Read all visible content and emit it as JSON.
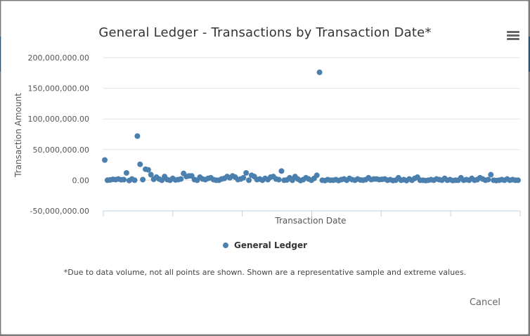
{
  "modal": {
    "cancel_label": "Cancel"
  },
  "chart_data": {
    "type": "scatter",
    "title": "General Ledger - Transactions by Transaction Date*",
    "xlabel": "Transaction Date",
    "ylabel": "Transaction Amount",
    "ylim": [
      -50000000,
      200000000
    ],
    "yticks": [
      "200,000,000.00",
      "150,000,000.00",
      "100,000,000.00",
      "50,000,000.00",
      "0.00",
      "-50,000,000.00"
    ],
    "ytick_values": [
      200000000,
      150000000,
      100000000,
      50000000,
      0,
      -50000000
    ],
    "grid": true,
    "legend_position": "bottom-center",
    "series": [
      {
        "name": "General Ledger",
        "color": "#4a7fae",
        "y": [
          33000000,
          0,
          500000,
          1500000,
          1000000,
          2000000,
          800000,
          1000000,
          12000000,
          -500000,
          2000000,
          0,
          72000000,
          26000000,
          1000000,
          18000000,
          17000000,
          9000000,
          1500000,
          5000000,
          2000000,
          0,
          6000000,
          1000000,
          0,
          3000000,
          500000,
          1000000,
          2000000,
          11000000,
          6000000,
          7000000,
          7000000,
          1000000,
          0,
          5000000,
          2000000,
          1000000,
          3000000,
          4000000,
          1000000,
          0,
          0,
          2000000,
          3000000,
          6000000,
          4000000,
          7000000,
          5000000,
          1000000,
          2000000,
          4000000,
          12000000,
          0,
          8000000,
          6000000,
          1000000,
          2000000,
          0,
          3000000,
          1000000,
          5000000,
          6000000,
          2000000,
          1000000,
          15000000,
          0,
          500000,
          4000000,
          0,
          6000000,
          2000000,
          -500000,
          1000000,
          4000000,
          2000000,
          0,
          3000000,
          8000000,
          176000000,
          0,
          -500000,
          1000000,
          0,
          0,
          1000000,
          -500000,
          1000000,
          2000000,
          0,
          3000000,
          1000000,
          0,
          2000000,
          500000,
          0,
          1000000,
          4000000,
          1000000,
          2000000,
          2000000,
          1000000,
          1500000,
          2000000,
          0,
          1000000,
          -500000,
          0,
          4000000,
          0,
          1000000,
          -500000,
          2000000,
          0,
          3000000,
          5000000,
          0,
          0,
          -500000,
          0,
          1000000,
          0,
          2000000,
          1000000,
          0,
          3000000,
          0,
          1000000,
          -500000,
          0,
          0,
          4000000,
          0,
          1000000,
          0,
          3000000,
          0,
          1000000,
          4000000,
          2000000,
          0,
          1000000,
          9000000,
          0,
          -500000,
          0,
          1000000,
          0,
          2000000,
          0,
          1000000,
          0,
          0
        ]
      }
    ],
    "footnote": "*Due to data volume, not all points are shown. Shown are a representative sample and extreme values."
  }
}
